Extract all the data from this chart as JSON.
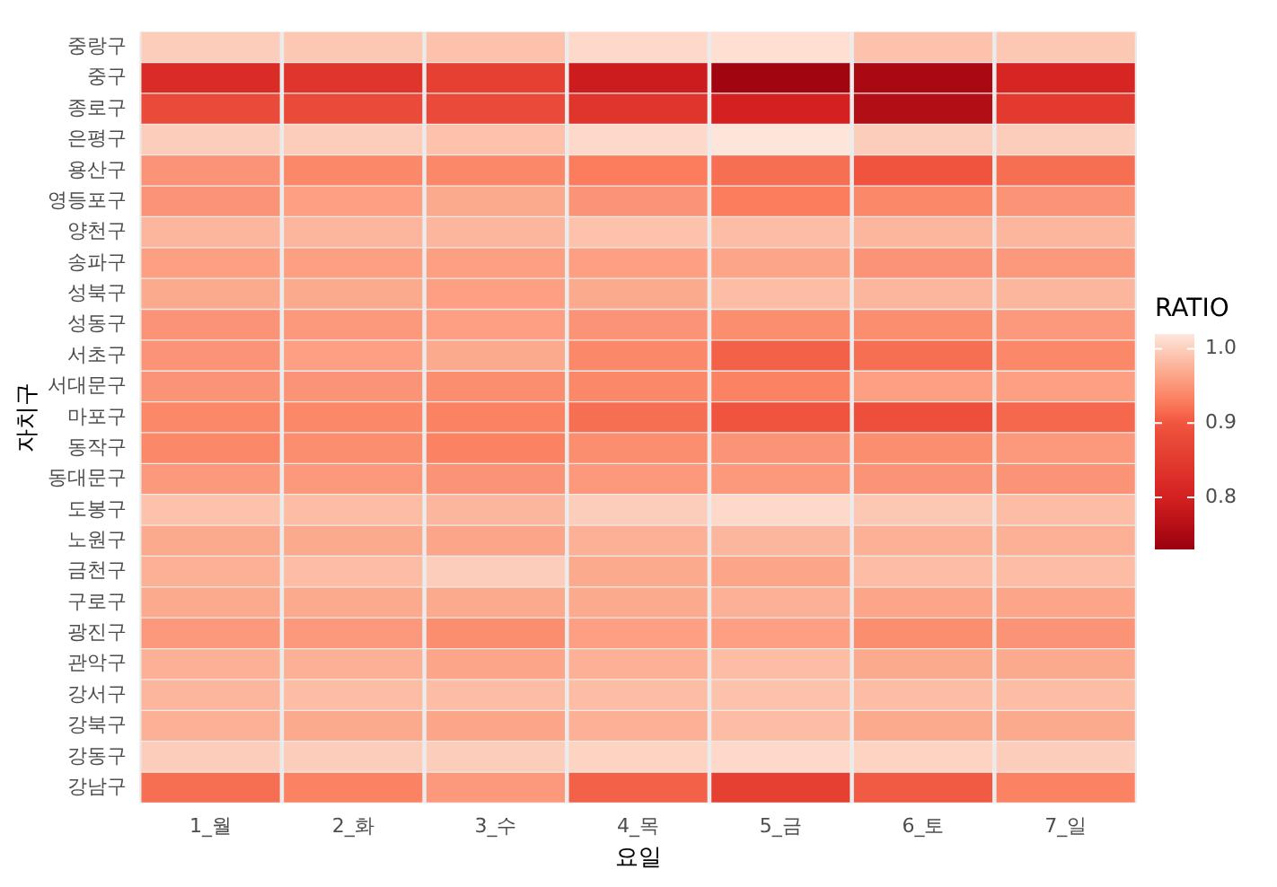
{
  "chart_data": {
    "type": "heatmap",
    "xlabel": "요일",
    "ylabel": "자치구",
    "clabel": "RATIO",
    "categories": [
      "1_월",
      "2_화",
      "3_수",
      "4_목",
      "5_금",
      "6_토",
      "7_일"
    ],
    "y_categories": [
      "중랑구",
      "중구",
      "종로구",
      "은평구",
      "용산구",
      "영등포구",
      "양천구",
      "송파구",
      "성북구",
      "성동구",
      "서초구",
      "서대문구",
      "마포구",
      "동작구",
      "동대문구",
      "도봉구",
      "노원구",
      "금천구",
      "구로구",
      "광진구",
      "관악구",
      "강서구",
      "강북구",
      "강동구",
      "강남구"
    ],
    "cells": [
      [
        1.0,
        0.995,
        0.99,
        1.01,
        1.015,
        0.99,
        0.995
      ],
      [
        0.82,
        0.84,
        0.86,
        0.79,
        0.74,
        0.75,
        0.81
      ],
      [
        0.88,
        0.88,
        0.88,
        0.84,
        0.8,
        0.76,
        0.85
      ],
      [
        1.0,
        1.0,
        0.99,
        1.01,
        1.02,
        1.0,
        1.0
      ],
      [
        0.95,
        0.94,
        0.94,
        0.93,
        0.92,
        0.9,
        0.92
      ],
      [
        0.95,
        0.96,
        0.97,
        0.95,
        0.93,
        0.94,
        0.95
      ],
      [
        0.98,
        0.98,
        0.98,
        0.99,
        0.985,
        0.98,
        0.98
      ],
      [
        0.96,
        0.96,
        0.96,
        0.96,
        0.965,
        0.95,
        0.955
      ],
      [
        0.97,
        0.97,
        0.96,
        0.97,
        0.985,
        0.98,
        0.98
      ],
      [
        0.95,
        0.955,
        0.96,
        0.95,
        0.945,
        0.945,
        0.955
      ],
      [
        0.95,
        0.96,
        0.97,
        0.94,
        0.91,
        0.92,
        0.94
      ],
      [
        0.95,
        0.95,
        0.945,
        0.94,
        0.935,
        0.96,
        0.96
      ],
      [
        0.94,
        0.94,
        0.935,
        0.92,
        0.9,
        0.89,
        0.915
      ],
      [
        0.94,
        0.945,
        0.935,
        0.945,
        0.95,
        0.945,
        0.955
      ],
      [
        0.955,
        0.955,
        0.95,
        0.955,
        0.955,
        0.95,
        0.95
      ],
      [
        0.99,
        0.985,
        0.98,
        1.0,
        1.01,
        0.995,
        0.985
      ],
      [
        0.97,
        0.97,
        0.965,
        0.975,
        0.98,
        0.975,
        0.975
      ],
      [
        0.975,
        0.985,
        1.0,
        0.97,
        0.965,
        0.985,
        0.985
      ],
      [
        0.97,
        0.97,
        0.97,
        0.97,
        0.975,
        0.965,
        0.965
      ],
      [
        0.955,
        0.955,
        0.945,
        0.96,
        0.96,
        0.945,
        0.95
      ],
      [
        0.975,
        0.975,
        0.965,
        0.975,
        0.985,
        0.97,
        0.97
      ],
      [
        0.98,
        0.985,
        0.985,
        0.985,
        0.99,
        0.985,
        0.985
      ],
      [
        0.975,
        0.97,
        0.965,
        0.975,
        0.985,
        0.97,
        0.97
      ],
      [
        1.0,
        1.0,
        1.0,
        1.005,
        1.01,
        1.005,
        1.0
      ],
      [
        0.92,
        0.935,
        0.955,
        0.91,
        0.86,
        0.905,
        0.935
      ]
    ],
    "clim": [
      0.73,
      1.02
    ],
    "cticks": [
      {
        "value": 0.8,
        "label": "0.8"
      },
      {
        "value": 0.9,
        "label": "0.9"
      },
      {
        "value": 1.0,
        "label": "1.0"
      }
    ]
  }
}
